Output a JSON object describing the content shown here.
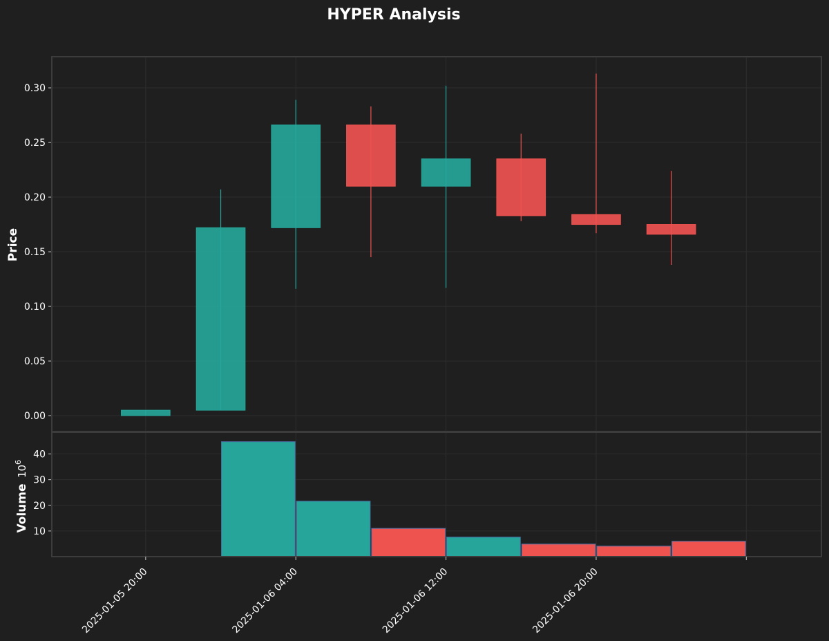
{
  "chart_data": {
    "type": "candlestick",
    "title": "HYPER Analysis",
    "price_panel": {
      "ylabel": "Price",
      "ylim": [
        -0.0145,
        0.3285
      ],
      "yticks": [
        "0.00",
        "0.05",
        "0.10",
        "0.15",
        "0.20",
        "0.25",
        "0.30"
      ],
      "ytick_values": [
        0.0,
        0.05,
        0.1,
        0.15,
        0.2,
        0.25,
        0.3
      ],
      "grid": true
    },
    "volume_panel": {
      "ylabel": "Volume",
      "unit_exponent": "6",
      "ylim": [
        0,
        48.5
      ],
      "yticks": [
        "10",
        "20",
        "30",
        "40"
      ],
      "ytick_values": [
        10,
        20,
        30,
        40
      ],
      "grid": true
    },
    "x_axis": {
      "tick_labels": [
        "2025-01-05 20:00",
        "2025-01-06 04:00",
        "2025-01-06 12:00",
        "2025-01-06 20:00"
      ],
      "tick_times": [
        "2025-01-05T20:00",
        "2025-01-06T04:00",
        "2025-01-06T12:00",
        "2025-01-06T20:00"
      ],
      "tick_rotation_deg": 45,
      "range": [
        "2025-01-05T15:00",
        "2025-01-07T08:00"
      ]
    },
    "candles": [
      {
        "time": "2025-01-05T20:00",
        "open": 0.0,
        "high": 0.005,
        "low": 0.0,
        "close": 0.005,
        "volume": 0.0,
        "direction": "up"
      },
      {
        "time": "2025-01-06T00:00",
        "open": 0.005,
        "high": 0.207,
        "low": 0.005,
        "close": 0.172,
        "volume": 44.8,
        "direction": "up"
      },
      {
        "time": "2025-01-06T04:00",
        "open": 0.172,
        "high": 0.289,
        "low": 0.116,
        "close": 0.266,
        "volume": 21.6,
        "direction": "up"
      },
      {
        "time": "2025-01-06T08:00",
        "open": 0.266,
        "high": 0.283,
        "low": 0.145,
        "close": 0.21,
        "volume": 11.0,
        "direction": "down"
      },
      {
        "time": "2025-01-06T12:00",
        "open": 0.21,
        "high": 0.302,
        "low": 0.117,
        "close": 0.235,
        "volume": 7.6,
        "direction": "up"
      },
      {
        "time": "2025-01-06T16:00",
        "open": 0.235,
        "high": 0.258,
        "low": 0.178,
        "close": 0.183,
        "volume": 4.9,
        "direction": "down"
      },
      {
        "time": "2025-01-06T20:00",
        "open": 0.184,
        "high": 0.313,
        "low": 0.167,
        "close": 0.175,
        "volume": 4.1,
        "direction": "down"
      },
      {
        "time": "2025-01-07T00:00",
        "open": 0.175,
        "high": 0.224,
        "low": 0.138,
        "close": 0.166,
        "volume": 6.0,
        "direction": "down"
      }
    ],
    "colors": {
      "background": "#1f1f1f",
      "up": "#26a69a",
      "down": "#ef5350",
      "grid": "#2e2e2e",
      "spine": "#3c3c3c",
      "volume_edge": "#4a6fa5"
    }
  }
}
